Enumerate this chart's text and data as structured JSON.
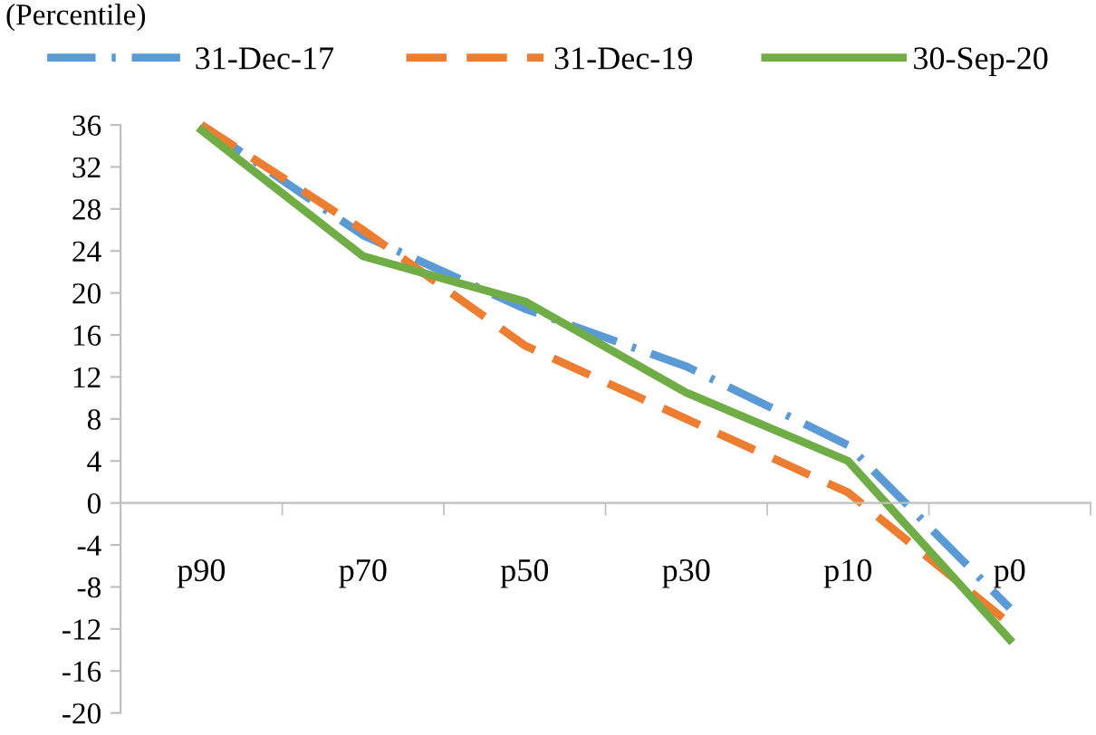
{
  "chart_data": {
    "type": "line",
    "ylabel": "(Percentile)",
    "categories": [
      "p90",
      "p70",
      "p50",
      "p30",
      "p10",
      "p0"
    ],
    "series": [
      {
        "name": "31-Dec-17",
        "color": "#5b9bd5",
        "line_style": "dashdot",
        "values": [
          36,
          25.5,
          18.5,
          13,
          5.5,
          -10
        ]
      },
      {
        "name": "31-Dec-19",
        "color": "#ed7d31",
        "line_style": "dashed",
        "values": [
          36,
          26,
          15,
          8,
          1,
          -11.5
        ]
      },
      {
        "name": "30-Sep-20",
        "color": "#70ad47",
        "line_style": "solid",
        "values": [
          35.5,
          23.5,
          19.2,
          10.5,
          4,
          -13
        ]
      }
    ],
    "ylim": [
      -20,
      36
    ],
    "yticks": [
      -20,
      -16,
      -12,
      -8,
      -4,
      0,
      4,
      8,
      12,
      16,
      20,
      24,
      28,
      32,
      36
    ],
    "grid": false,
    "legend": "top",
    "marker": "none"
  }
}
